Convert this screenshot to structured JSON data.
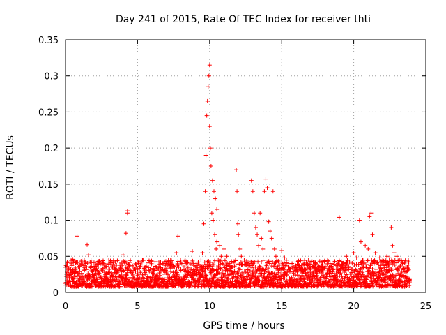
{
  "chart_data": {
    "type": "scatter",
    "title": "Day 241 of 2015, Rate Of TEC Index for receiver thti",
    "xlabel": "GPS time / hours",
    "ylabel": "ROTI / TECUs",
    "xlim": [
      0,
      25
    ],
    "ylim": [
      0,
      0.35
    ],
    "xticks": [
      0,
      5,
      10,
      15,
      20,
      25
    ],
    "xtick_labels": [
      "0",
      "5",
      "10",
      "15",
      "20",
      "25"
    ],
    "yticks": [
      0,
      0.05,
      0.1,
      0.15,
      0.2,
      0.25,
      0.3,
      0.35
    ],
    "ytick_labels": [
      "0",
      "0.05",
      "0.1",
      "0.15",
      "0.2",
      "0.25",
      "0.3",
      "0.35"
    ],
    "grid": true,
    "marker": "+",
    "color": "#ff0000",
    "series": [
      {
        "name": "ROTI",
        "x": [
          0.1,
          0.3,
          0.5,
          0.7,
          0.8,
          1.0,
          1.3,
          1.5,
          1.6,
          1.8,
          2.0,
          2.3,
          2.5,
          2.8,
          3.0,
          3.2,
          3.5,
          3.8,
          4.0,
          4.2,
          4.2,
          4.3,
          4.3,
          4.5,
          4.8,
          5.0,
          5.2,
          5.5,
          5.8,
          6.0,
          6.3,
          6.5,
          6.8,
          7.0,
          7.3,
          7.5,
          7.7,
          7.8,
          8.0,
          8.3,
          8.5,
          8.8,
          9.0,
          9.2,
          9.4,
          9.5,
          9.6,
          9.7,
          9.75,
          9.8,
          9.85,
          9.9,
          9.95,
          10.0,
          10.0,
          10.05,
          10.1,
          10.15,
          10.2,
          10.25,
          10.3,
          10.35,
          10.4,
          10.45,
          10.5,
          10.5,
          10.6,
          10.7,
          10.8,
          10.9,
          11.0,
          11.2,
          11.4,
          11.6,
          11.8,
          11.85,
          11.9,
          11.95,
          12.0,
          12.1,
          12.2,
          12.4,
          12.6,
          12.8,
          12.9,
          13.0,
          13.1,
          13.2,
          13.3,
          13.4,
          13.5,
          13.6,
          13.7,
          13.8,
          13.9,
          14.0,
          14.1,
          14.2,
          14.3,
          14.4,
          14.5,
          14.6,
          14.8,
          15.0,
          15.2,
          15.5,
          15.8,
          16.0,
          16.3,
          16.5,
          16.8,
          17.0,
          17.3,
          17.5,
          17.8,
          18.0,
          18.3,
          18.5,
          18.8,
          19.0,
          19.0,
          19.2,
          19.5,
          19.8,
          20.0,
          20.2,
          20.4,
          20.5,
          20.6,
          20.8,
          21.0,
          21.1,
          21.2,
          21.3,
          21.5,
          21.8,
          22.0,
          22.3,
          22.5,
          22.6,
          22.7,
          22.8,
          23.0,
          23.2,
          23.4,
          23.6,
          23.8
        ],
        "y": [
          0.028,
          0.035,
          0.046,
          0.041,
          0.078,
          0.038,
          0.045,
          0.066,
          0.052,
          0.03,
          0.034,
          0.028,
          0.031,
          0.036,
          0.045,
          0.027,
          0.03,
          0.034,
          0.052,
          0.035,
          0.082,
          0.113,
          0.11,
          0.03,
          0.033,
          0.026,
          0.038,
          0.031,
          0.044,
          0.028,
          0.035,
          0.027,
          0.03,
          0.04,
          0.029,
          0.036,
          0.055,
          0.078,
          0.032,
          0.045,
          0.034,
          0.057,
          0.036,
          0.03,
          0.045,
          0.055,
          0.095,
          0.14,
          0.19,
          0.245,
          0.265,
          0.285,
          0.3,
          0.315,
          0.23,
          0.2,
          0.175,
          0.11,
          0.155,
          0.1,
          0.14,
          0.08,
          0.13,
          0.06,
          0.07,
          0.115,
          0.045,
          0.065,
          0.05,
          0.04,
          0.06,
          0.05,
          0.04,
          0.035,
          0.045,
          0.17,
          0.14,
          0.095,
          0.08,
          0.06,
          0.05,
          0.045,
          0.04,
          0.038,
          0.155,
          0.14,
          0.11,
          0.09,
          0.08,
          0.065,
          0.11,
          0.075,
          0.06,
          0.14,
          0.157,
          0.145,
          0.098,
          0.085,
          0.075,
          0.14,
          0.06,
          0.05,
          0.042,
          0.058,
          0.048,
          0.04,
          0.036,
          0.03,
          0.032,
          0.028,
          0.04,
          0.032,
          0.03,
          0.034,
          0.028,
          0.036,
          0.03,
          0.04,
          0.032,
          0.044,
          0.104,
          0.038,
          0.05,
          0.042,
          0.055,
          0.048,
          0.1,
          0.07,
          0.045,
          0.065,
          0.06,
          0.105,
          0.11,
          0.08,
          0.055,
          0.048,
          0.044,
          0.05,
          0.048,
          0.09,
          0.065,
          0.055,
          0.05,
          0.045,
          0.04,
          0.042,
          0.038
        ],
        "baseline_y_range": [
          0.0,
          0.045
        ]
      }
    ]
  }
}
